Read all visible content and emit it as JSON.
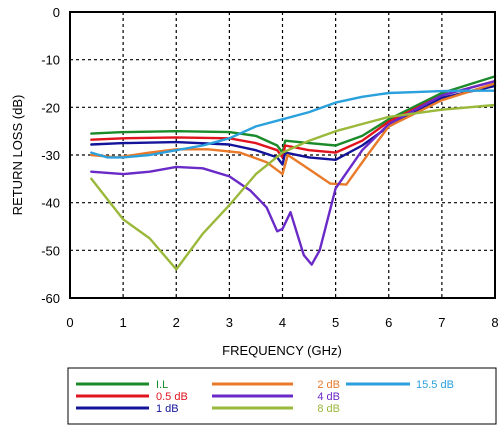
{
  "chart_data": {
    "type": "line",
    "title": "",
    "xlabel": "FREQUENCY (GHz)",
    "ylabel": "RETURN LOSS (dB)",
    "xlim": [
      0,
      8
    ],
    "ylim": [
      -60,
      0
    ],
    "xticks": [
      "0",
      "1",
      "2",
      "3",
      "4",
      "5",
      "6",
      "7",
      "8"
    ],
    "yticks": [
      "0",
      "-10",
      "-20",
      "-30",
      "-40",
      "-50",
      "-60"
    ],
    "grid": true,
    "legend": "bottom",
    "series": [
      {
        "name": "I.L",
        "color": "#1a8a2a",
        "x": [
          0.4,
          1,
          2,
          3,
          3.5,
          3.9,
          4.0,
          4.05,
          4.5,
          5.0,
          5.5,
          6,
          7,
          8
        ],
        "y": [
          -25.5,
          -25.2,
          -25.0,
          -25.2,
          -26,
          -28,
          -29.5,
          -27,
          -27.5,
          -28,
          -26,
          -22.5,
          -17,
          -13.5
        ]
      },
      {
        "name": "0.5 dB",
        "color": "#e0141e",
        "x": [
          0.4,
          1,
          2,
          3,
          3.5,
          3.9,
          4.0,
          4.05,
          4.5,
          5.0,
          5.5,
          6,
          7,
          8
        ],
        "y": [
          -26.8,
          -26.5,
          -26.3,
          -26.5,
          -27.5,
          -29,
          -30.5,
          -28,
          -29,
          -29.5,
          -27,
          -23,
          -17.5,
          -14.5
        ]
      },
      {
        "name": "1 dB",
        "color": "#14149a",
        "x": [
          0.4,
          1,
          2,
          3,
          3.5,
          3.9,
          4.0,
          4.05,
          4.5,
          5.0,
          5.5,
          6,
          7,
          8
        ],
        "y": [
          -27.8,
          -27.5,
          -27.3,
          -27.8,
          -29,
          -30.5,
          -32,
          -29.5,
          -30.5,
          -31,
          -28,
          -24,
          -18,
          -15.5
        ]
      },
      {
        "name": "2 dB",
        "color": "#e87a2a",
        "x": [
          0.4,
          0.9,
          1.5,
          2.0,
          2.6,
          3.2,
          3.7,
          4.0,
          4.1,
          4.5,
          4.9,
          5.2,
          5.6,
          6,
          7,
          8
        ],
        "y": [
          -30,
          -30.5,
          -29.5,
          -28.8,
          -28.8,
          -29.5,
          -31.5,
          -34,
          -30,
          -33,
          -36,
          -36.2,
          -30,
          -24,
          -18.5,
          -15
        ]
      },
      {
        "name": "4 dB",
        "color": "#6a2ac8",
        "x": [
          0.4,
          1,
          1.5,
          2,
          2.5,
          3.0,
          3.4,
          3.7,
          3.9,
          4.0,
          4.15,
          4.4,
          4.55,
          4.7,
          5.0,
          5.5,
          6,
          7,
          8
        ],
        "y": [
          -33.5,
          -34,
          -33.5,
          -32.5,
          -32.8,
          -34.5,
          -37.5,
          -41,
          -46,
          -45.5,
          -42,
          -51,
          -53,
          -50,
          -37,
          -29,
          -23.5,
          -17.5,
          -14.5
        ]
      },
      {
        "name": "8 dB",
        "color": "#9ab83a",
        "x": [
          0.4,
          1,
          1.5,
          2,
          2.5,
          3,
          3.5,
          4,
          4.5,
          5,
          5.5,
          6,
          7,
          8
        ],
        "y": [
          -35,
          -43.5,
          -47.5,
          -54,
          -46.5,
          -40.5,
          -34,
          -29.5,
          -27,
          -25,
          -23.5,
          -22,
          -20.5,
          -19.5
        ]
      },
      {
        "name": "15.5 dB",
        "color": "#2aa0dc",
        "x": [
          0.4,
          0.7,
          1,
          1.5,
          2,
          2.5,
          3,
          3.5,
          4,
          4.5,
          5,
          5.5,
          6,
          6.5,
          7,
          7.5,
          8
        ],
        "y": [
          -29.5,
          -30.5,
          -30.5,
          -30,
          -29,
          -28,
          -26.5,
          -24,
          -22.5,
          -21,
          -19,
          -17.8,
          -17,
          -16.8,
          -16.6,
          -16.5,
          -16.5
        ]
      }
    ]
  }
}
